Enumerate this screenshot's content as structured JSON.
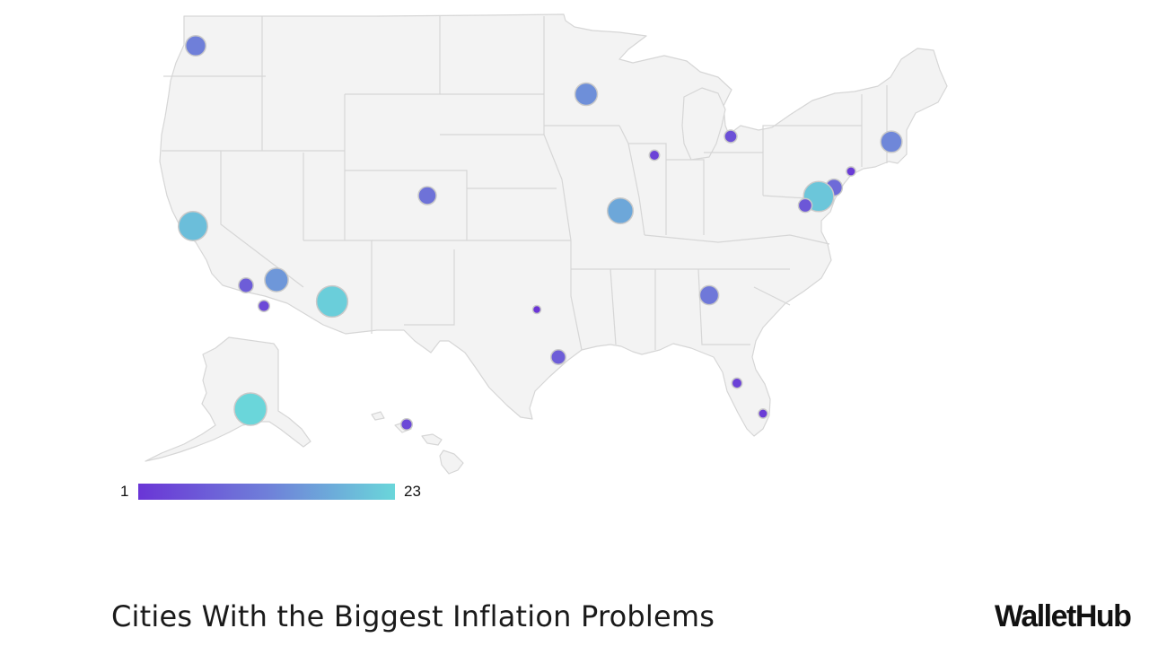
{
  "title": "Cities With the Biggest Inflation Problems",
  "brand": "WalletHub",
  "legend": {
    "min_label": "1",
    "max_label": "23",
    "min_value": 1,
    "max_value": 23,
    "color_low": "#6a35d6",
    "color_high": "#6ad6da"
  },
  "colors": {
    "land": "#f3f3f3",
    "state_border": "#d6d6d6",
    "bubble_stroke": "#c9c9c9"
  },
  "map_data": {
    "points": [
      {
        "area": "Seattle",
        "rank": 12
      },
      {
        "area": "San Francisco",
        "rank": 20
      },
      {
        "area": "Los Angeles",
        "rank": 7
      },
      {
        "area": "Riverside",
        "rank": 15
      },
      {
        "area": "San Diego",
        "rank": 4
      },
      {
        "area": "Phoenix",
        "rank": 22
      },
      {
        "area": "Denver",
        "rank": 10
      },
      {
        "area": "Minneapolis",
        "rank": 14
      },
      {
        "area": "St. Louis",
        "rank": 17
      },
      {
        "area": "Chicago",
        "rank": 3
      },
      {
        "area": "Detroit",
        "rank": 5
      },
      {
        "area": "Boston",
        "rank": 13
      },
      {
        "area": "New York",
        "rank": 2
      },
      {
        "area": "Philadelphia",
        "rank": 9
      },
      {
        "area": "Baltimore",
        "rank": 21
      },
      {
        "area": "Washington",
        "rank": 6
      },
      {
        "area": "Atlanta",
        "rank": 11
      },
      {
        "area": "Dallas",
        "rank": 1
      },
      {
        "area": "Houston",
        "rank": 7
      },
      {
        "area": "Tampa",
        "rank": 3
      },
      {
        "area": "Miami",
        "rank": 2
      },
      {
        "area": "Anchorage",
        "rank": 23
      },
      {
        "area": "Urban Hawaii",
        "rank": 4
      }
    ]
  }
}
